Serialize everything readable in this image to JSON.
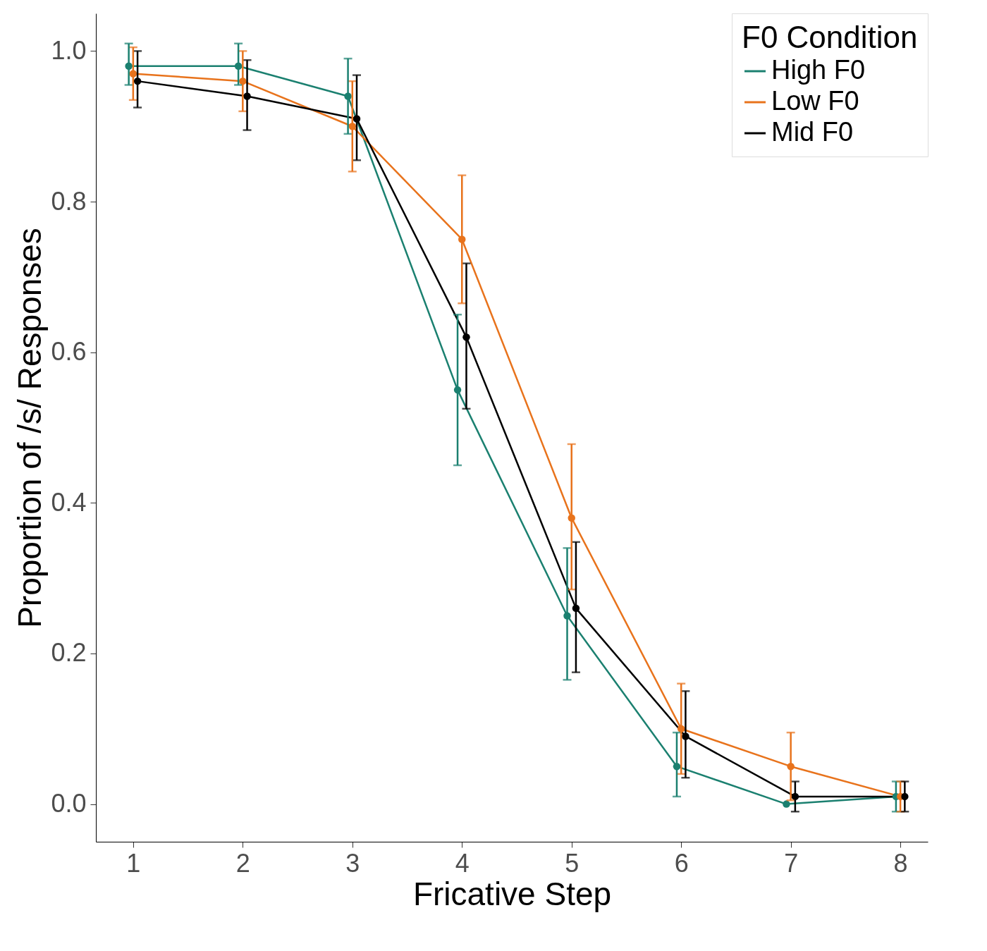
{
  "chart_data": {
    "type": "line",
    "xlabel": "Fricative Step",
    "ylabel": "Proportion of /s/ Responses",
    "legend_title": "F0 Condition",
    "x": [
      1,
      2,
      3,
      4,
      5,
      6,
      7,
      8
    ],
    "xlim": [
      0.66,
      8.25
    ],
    "xticks": [
      1,
      2,
      3,
      4,
      5,
      6,
      7,
      8
    ],
    "ylim": [
      -0.05,
      1.05
    ],
    "yticks": [
      {
        "value": 0,
        "label": "0.0"
      },
      0.2,
      0.4,
      0.6,
      0.8,
      {
        "value": 1,
        "label": "1.0"
      }
    ],
    "grid": false,
    "legend": "top right",
    "marker": "circle",
    "line_style": "solid",
    "series": [
      {
        "name": "High F0",
        "color": "#1b8070",
        "x": [
          0.96,
          1.96,
          2.96,
          3.96,
          4.96,
          5.96,
          6.96,
          7.96
        ],
        "values": [
          0.98,
          0.98,
          0.94,
          0.55,
          0.25,
          0.05,
          0.0,
          0.01
        ],
        "errors": [
          [
            0.955,
            1.01
          ],
          [
            0.955,
            1.01
          ],
          [
            0.89,
            0.99
          ],
          [
            0.45,
            0.65
          ],
          [
            0.165,
            0.34
          ],
          [
            0.01,
            0.095
          ],
          null,
          [
            -0.01,
            0.03
          ]
        ]
      },
      {
        "name": "Low F0",
        "color": "#e8731c",
        "values": [
          0.97,
          0.96,
          0.9,
          0.75,
          0.38,
          0.1,
          0.05,
          0.01
        ],
        "errors": [
          [
            0.935,
            1.005
          ],
          [
            0.92,
            1.0
          ],
          [
            0.84,
            0.96
          ],
          [
            0.665,
            0.835
          ],
          [
            0.285,
            0.478
          ],
          [
            0.04,
            0.16
          ],
          [
            0.005,
            0.095
          ],
          [
            -0.01,
            0.03
          ]
        ]
      },
      {
        "name": "Mid F0",
        "color": "#000000",
        "x": [
          1.04,
          2.04,
          3.04,
          4.04,
          5.04,
          6.04,
          7.04,
          8.04
        ],
        "values": [
          0.96,
          0.94,
          0.91,
          0.62,
          0.26,
          0.09,
          0.01,
          0.01
        ],
        "errors": [
          [
            0.925,
            1.0
          ],
          [
            0.895,
            0.988
          ],
          [
            0.855,
            0.968
          ],
          [
            0.525,
            0.718
          ],
          [
            0.175,
            0.348
          ],
          [
            0.035,
            0.15
          ],
          [
            -0.01,
            0.03
          ],
          [
            -0.01,
            0.03
          ]
        ]
      }
    ]
  }
}
